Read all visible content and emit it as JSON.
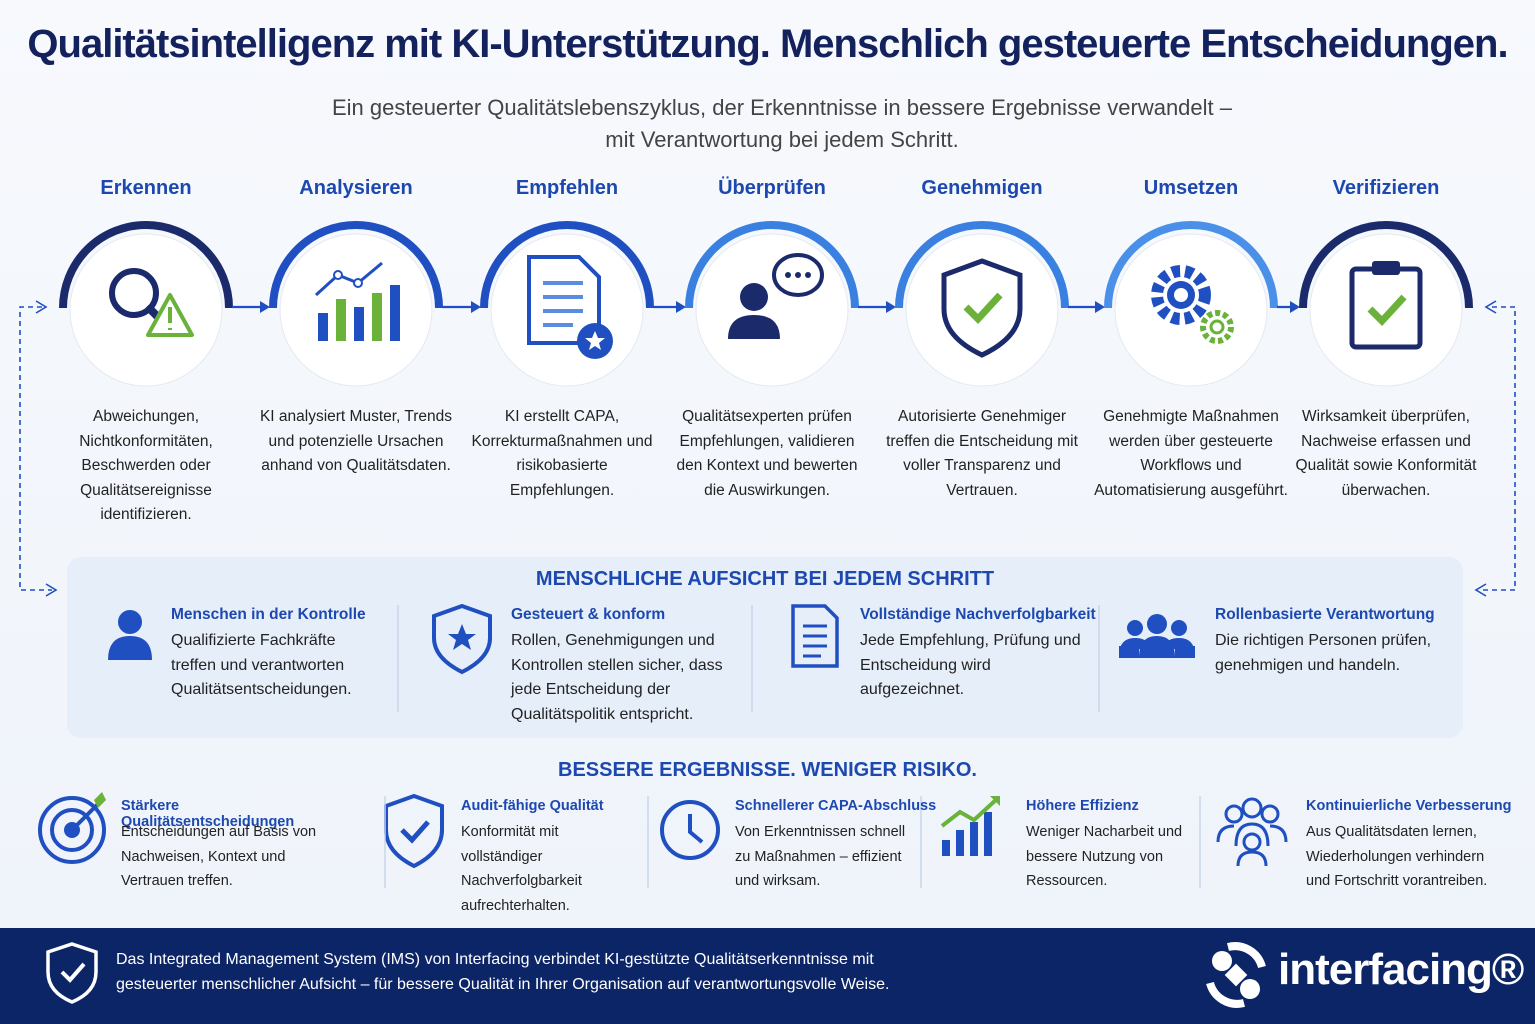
{
  "header": {
    "title": "Qualitätsintelligenz mit KI-Unterstützung. Menschlich gesteuerte Entscheidungen.",
    "subtitle": "Ein gesteuerter Qualitätslebenszyklus, der Erkenntnisse in bessere Ergebnisse verwandelt – mit Verantwortung bei jedem Schritt."
  },
  "steps": [
    {
      "label": "Erkennen",
      "text": "Abweichungen, Nichtkonformitäten, Beschwerden oder Qualitätsereignisse identifizieren."
    },
    {
      "label": "Analysieren",
      "text": "KI analysiert Muster, Trends und potenzielle Ursachen anhand von Qualitätsdaten."
    },
    {
      "label": "Empfehlen",
      "text": "KI erstellt CAPA, Korrekturmaßnahmen und risikobasierte Empfehlungen."
    },
    {
      "label": "Überprüfen",
      "text": "Qualitätsexperten prüfen Empfehlungen, validieren den Kontext und bewerten die Auswirkungen."
    },
    {
      "label": "Genehmigen",
      "text": "Autorisierte Genehmiger treffen die Entscheidung mit voller Transparenz und Vertrauen."
    },
    {
      "label": "Umsetzen",
      "text": "Genehmigte Maßnahmen werden über gesteuerte Workflows und Automatisierung ausgeführt."
    },
    {
      "label": "Verifizieren",
      "text": "Wirksamkeit überprüfen, Nachweise erfassen und Qualität sowie Konformität überwachen."
    }
  ],
  "oversight": {
    "title": "MENSCHLICHE AUFSICHT BEI JEDEM SCHRITT",
    "items": [
      {
        "title": "Menschen in der Kontrolle",
        "text": "Qualifizierte Fachkräfte treffen und verantworten Qualitätsentscheidungen."
      },
      {
        "title": "Gesteuert & konform",
        "text": "Rollen, Genehmigungen und Kontrollen stellen sicher, dass jede Entscheidung der Qualitätspolitik entspricht."
      },
      {
        "title": "Vollständige Nachverfolgbarkeit",
        "text": "Jede Empfehlung, Prüfung und Entscheidung wird aufgezeichnet."
      },
      {
        "title": "Rollenbasierte Verantwortung",
        "text": "Die richtigen Personen prüfen, genehmigen und handeln."
      }
    ]
  },
  "benefits": {
    "title": "BESSERE ERGEBNISSE. WENIGER RISIKO.",
    "items": [
      {
        "title": "Stärkere Qualitätsentscheidungen",
        "text": "Entscheidungen auf Basis von Nachweisen, Kontext und Vertrauen treffen."
      },
      {
        "title": "Audit-fähige Qualität",
        "text": "Konformität mit vollständiger Nachverfolgbarkeit aufrechterhalten."
      },
      {
        "title": "Schnellerer CAPA-Abschluss",
        "text": "Von Erkenntnissen schnell zu Maßnahmen – effizient und wirksam."
      },
      {
        "title": "Höhere Effizienz",
        "text": "Weniger Nacharbeit und bessere Nutzung von Ressourcen."
      },
      {
        "title": "Kontinuierliche Verbesserung",
        "text": "Aus Qualitätsdaten lernen, Wiederholungen verhindern und Fortschritt vorantreiben."
      }
    ]
  },
  "footer": {
    "text": "Das Integrated Management System (IMS) von Interfacing verbindet KI-gestützte Qualitätserkenntnisse mit gesteuerter menschlicher Aufsicht – für bessere Qualität in Ihrer Organisation auf verantwortungsvolle Weise.",
    "brand": "interfacing®"
  }
}
